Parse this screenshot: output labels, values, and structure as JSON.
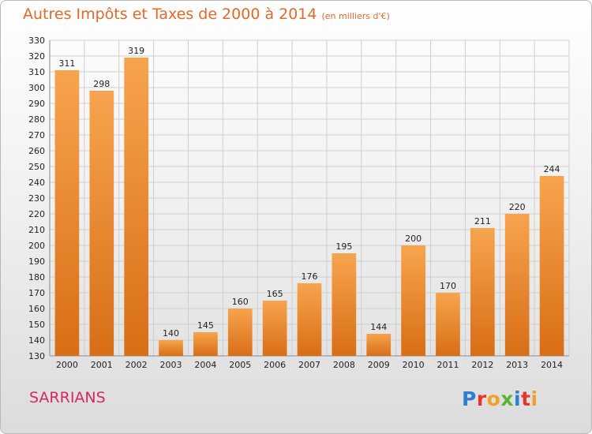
{
  "header": {
    "title": "Autres Impôts et Taxes de 2000 à 2014",
    "unit": "(en milliers d'€)"
  },
  "commune": "SARRIANS",
  "logo": {
    "text": "Proxiti",
    "letters": [
      {
        "ch": "P",
        "color": "#2e7fd1"
      },
      {
        "ch": "r",
        "color": "#e7342f"
      },
      {
        "ch": "o",
        "color": "#f2a126"
      },
      {
        "ch": "x",
        "color": "#5bb333"
      },
      {
        "ch": "i",
        "color": "#2e7fd1"
      },
      {
        "ch": "t",
        "color": "#e7342f"
      },
      {
        "ch": "i",
        "color": "#f2a126"
      }
    ]
  },
  "colors": {
    "bar_top": "#f7a44e",
    "bar_bottom": "#d86e16",
    "grid": "#cfcfcf",
    "title": "#e06a2c",
    "commune": "#d9285f"
  },
  "chart_data": {
    "type": "bar",
    "title": "Autres Impôts et Taxes de 2000 à 2014",
    "subtitle": "(en milliers d'€)",
    "categories": [
      "2000",
      "2001",
      "2002",
      "2003",
      "2004",
      "2005",
      "2006",
      "2007",
      "2008",
      "2009",
      "2010",
      "2011",
      "2012",
      "2013",
      "2014"
    ],
    "values": [
      311,
      298,
      319,
      140,
      145,
      160,
      165,
      176,
      195,
      144,
      200,
      170,
      211,
      220,
      244
    ],
    "ylim": [
      130,
      330
    ],
    "ytick_step": 10,
    "grid": true,
    "legend": "none",
    "xlabel": "",
    "ylabel": ""
  }
}
